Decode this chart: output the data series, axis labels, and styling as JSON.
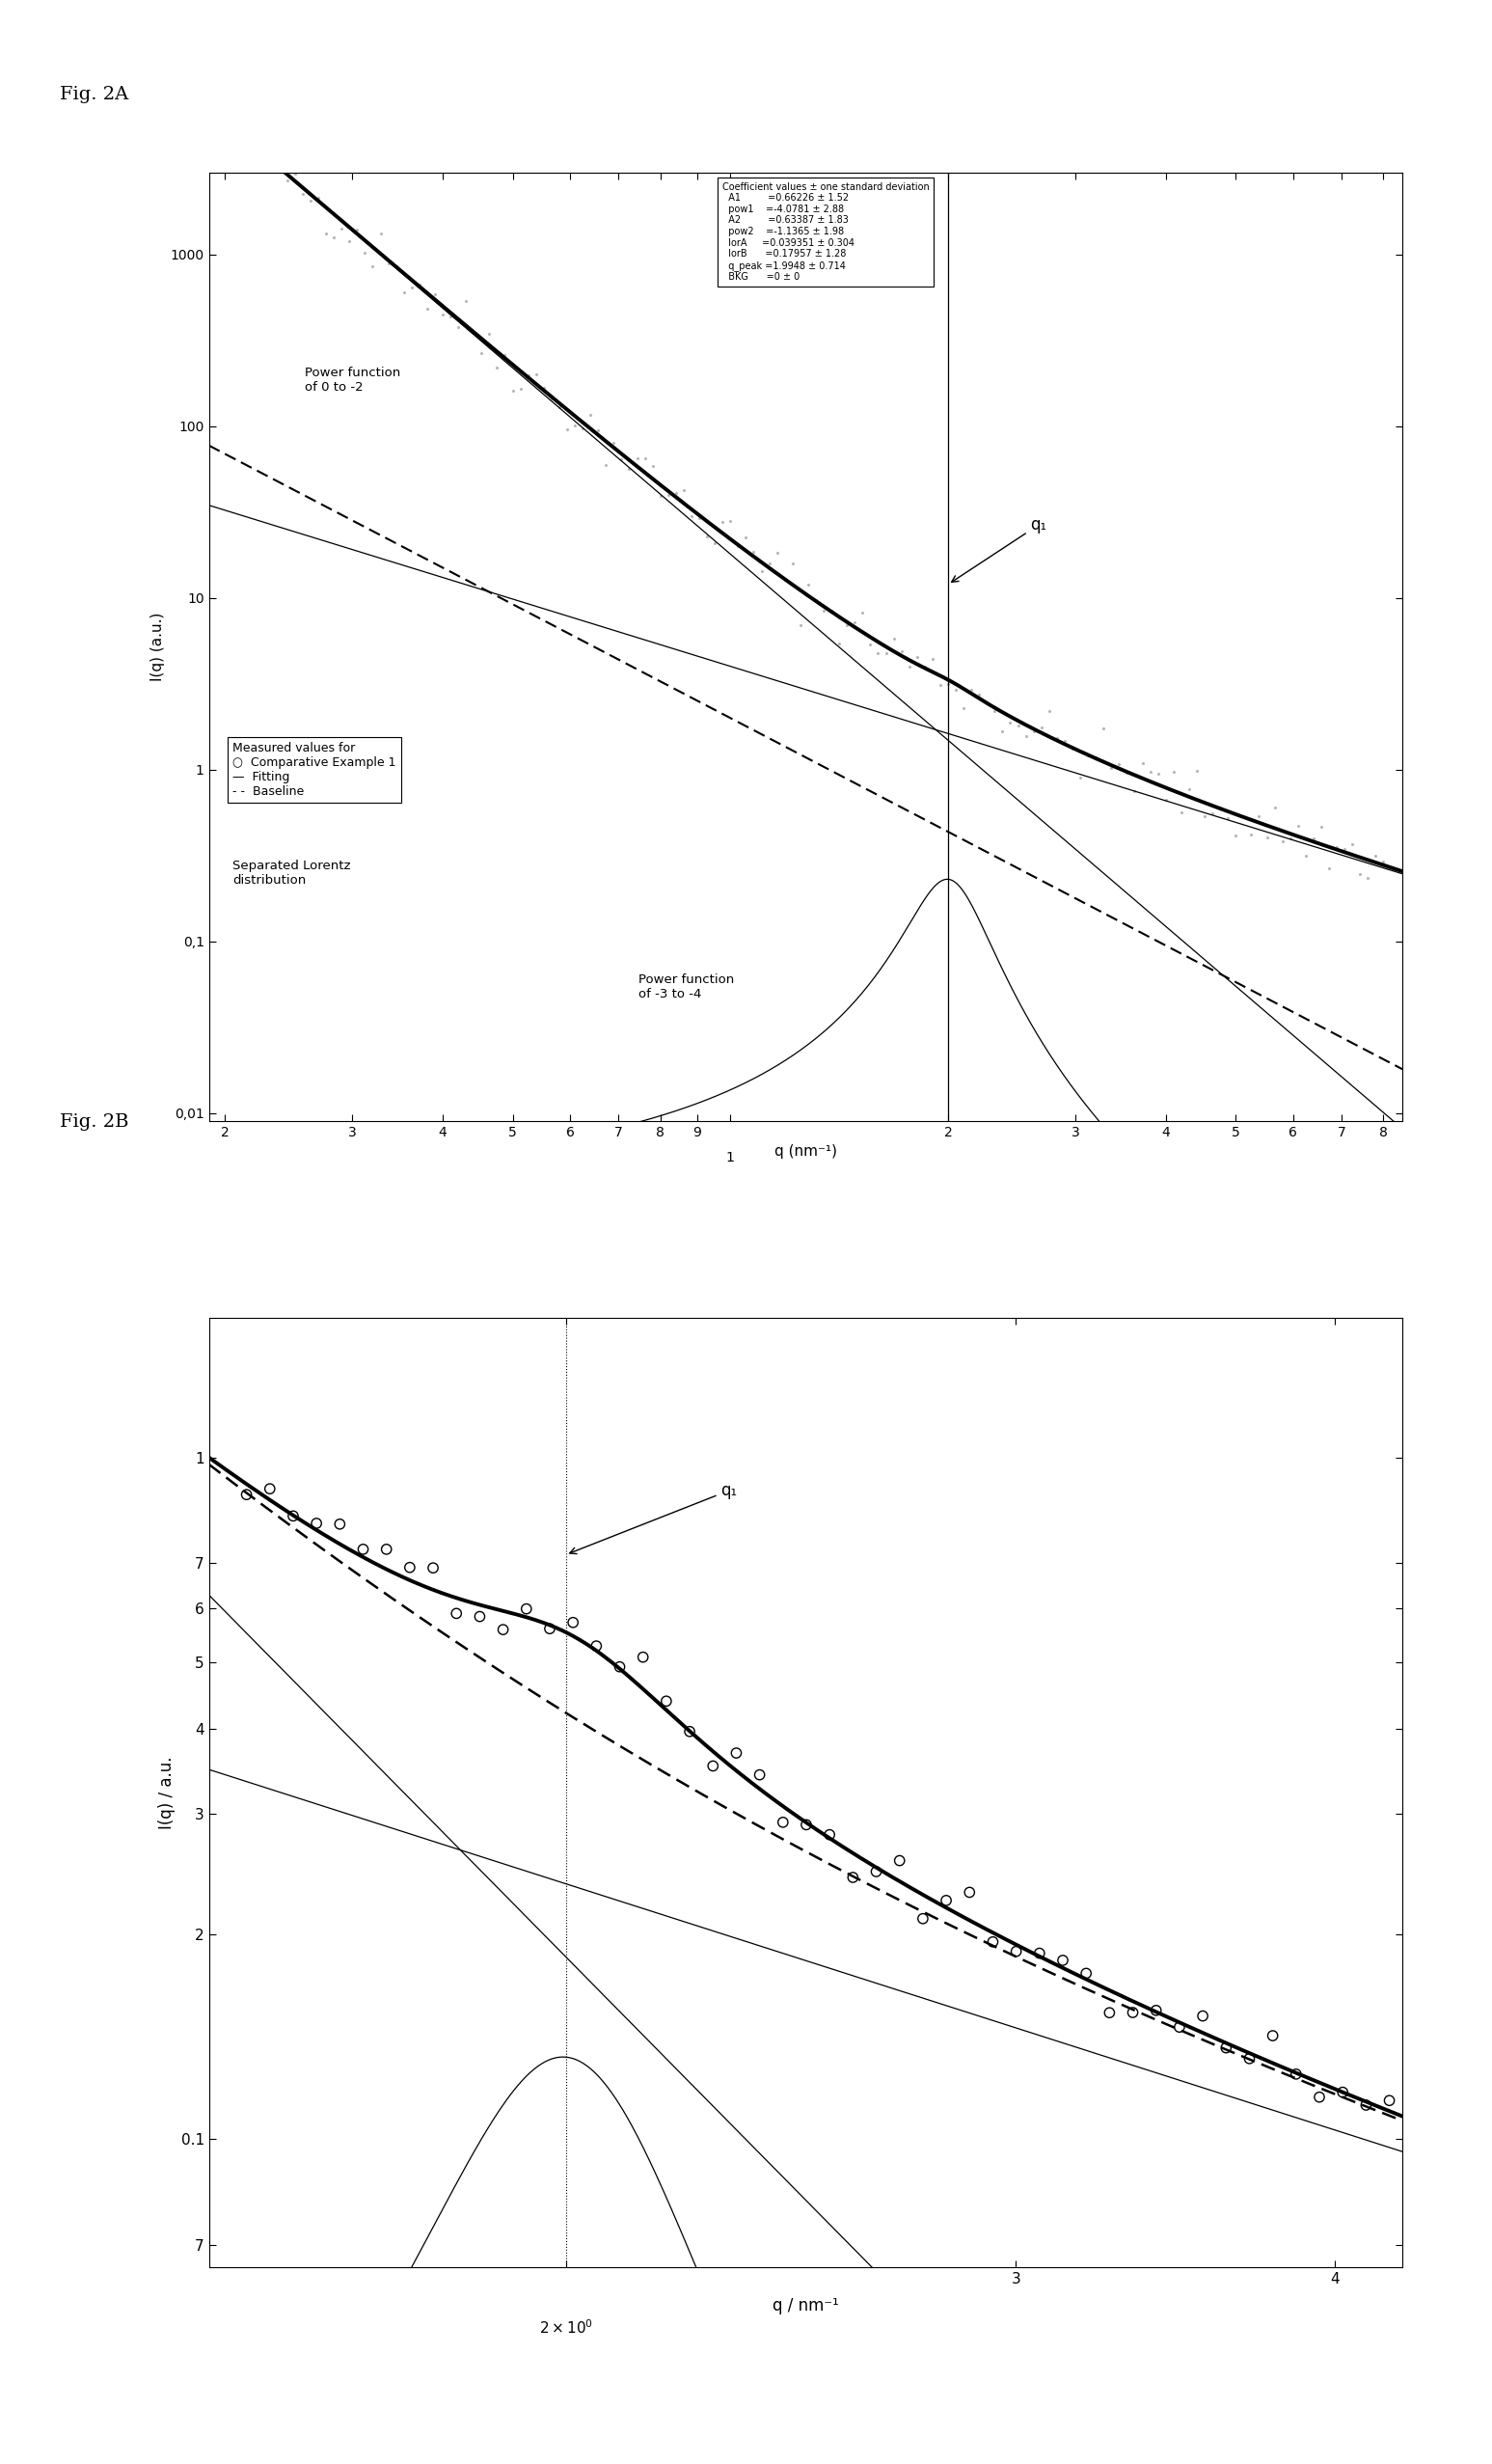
{
  "fig_label_A": "Fig. 2A",
  "fig_label_B": "Fig. 2B",
  "xlabel_A": "q (nm⁻¹)",
  "ylabel_A": "I(q) (a.u.)",
  "xlabel_B": "q / nm⁻¹",
  "ylabel_B": "I(q) / a.u.",
  "coeff_box_lines": [
    "Coefficient values ± one standard deviation",
    "  A1         =0.66226 ± 1.52",
    "  pow1    =-4.0781 ± 2.88",
    "  A2         =0.63387 ± 1.83",
    "  pow2    =-1.1365 ± 1.98",
    "  lorA     =0.039351 ± 0.304",
    "  lorB      =0.17957 ± 1.28",
    "  q_peak =1.9948 ± 0.714",
    "  BKG      =0 ± 0"
  ],
  "q1_label": "q₁",
  "q1_value_A": 2.0,
  "q1_value_B": 2.0,
  "background_color": "#ffffff"
}
